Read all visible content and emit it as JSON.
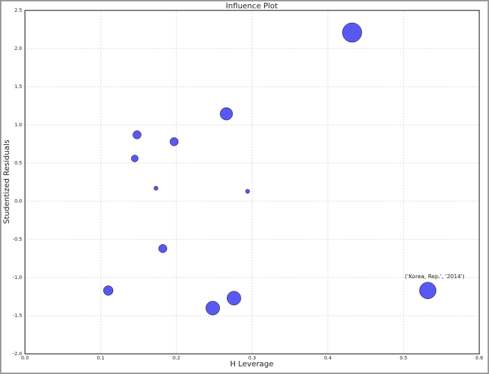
{
  "chart_data": {
    "type": "scatter",
    "title": "Influence Plot",
    "x_label": "H Leverage",
    "y_label": "Studentized Residuals",
    "x": [
      0.432,
      0.266,
      0.148,
      0.197,
      0.145,
      0.173,
      0.294,
      0.182,
      0.11,
      0.248,
      0.276,
      0.532
    ],
    "values": [
      2.21,
      1.145,
      0.87,
      0.78,
      0.56,
      0.17,
      0.13,
      -0.62,
      -1.17,
      -1.4,
      -1.27,
      -1.17
    ],
    "sizes": [
      14,
      9,
      6,
      6,
      5,
      3,
      3,
      6,
      7,
      10,
      10,
      12
    ],
    "color": "#2222ee",
    "xlim": [
      0,
      0.6
    ],
    "xticks": [
      {
        "value": 0,
        "label": "0.0"
      },
      0.1,
      0.2,
      0.3,
      0.4,
      0.5,
      0.6
    ],
    "ylim": [
      -2,
      2.5
    ],
    "yticks": [
      {
        "value": -2,
        "label": "-2.0"
      },
      -1.5,
      {
        "value": -1,
        "label": "-1.0"
      },
      -0.5,
      {
        "value": 0,
        "label": "0.0"
      },
      0.5,
      {
        "value": 1,
        "label": "1.0"
      },
      1.5,
      {
        "value": 2,
        "label": "2.0"
      },
      2.5
    ],
    "grid": true,
    "annotations": [
      {
        "text": "('Korea, Rep.', '2014')",
        "x": 0.532,
        "y": -1.17
      }
    ]
  }
}
